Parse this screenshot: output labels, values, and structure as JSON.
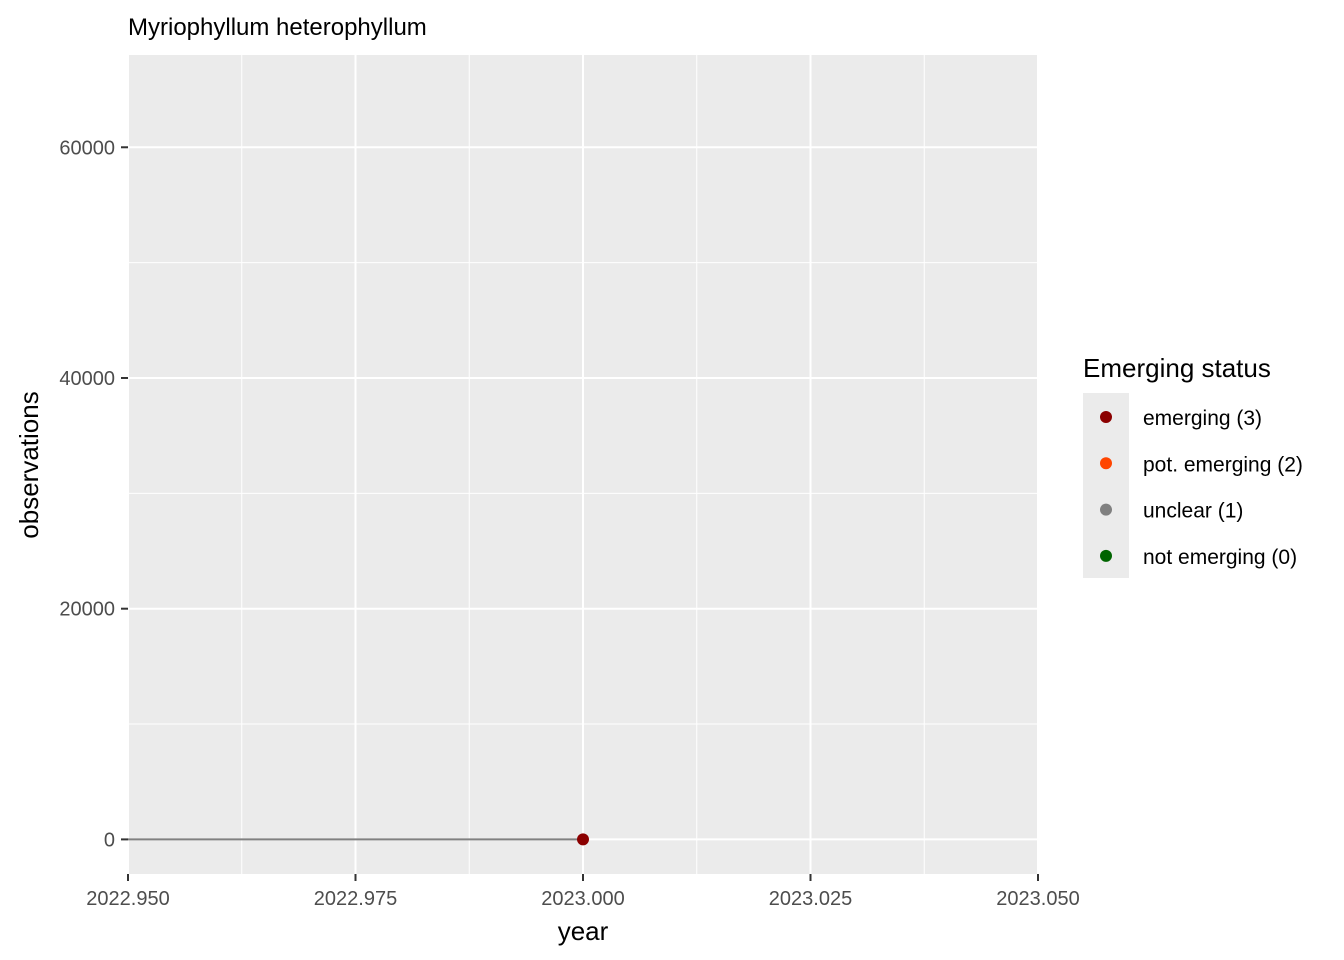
{
  "chart_data": {
    "type": "line",
    "title": "Myriophyllum heterophyllum",
    "xlabel": "year",
    "ylabel": "observations",
    "xlim": [
      2022.95,
      2023.05
    ],
    "ylim": [
      -3000,
      68000
    ],
    "x_ticks": [
      2022.95,
      2022.975,
      2023.0,
      2023.025,
      2023.05
    ],
    "x_tick_labels": [
      "2022.950",
      "2022.975",
      "2023.000",
      "2023.025",
      "2023.050"
    ],
    "y_ticks": [
      0,
      20000,
      40000,
      60000
    ],
    "y_tick_labels": [
      "0",
      "20000",
      "40000",
      "60000"
    ],
    "grid": true,
    "line": {
      "color": "#808080",
      "points": [
        {
          "x": 2022.95,
          "y": 0
        },
        {
          "x": 2023.0,
          "y": 0
        }
      ]
    },
    "points": [
      {
        "x": 2023.0,
        "y": 0,
        "status": "emerging (3)",
        "color": "#8B0000"
      }
    ],
    "legend": {
      "title": "Emerging status",
      "placement": "right",
      "entries": [
        {
          "label": "emerging (3)",
          "color": "#8B0000"
        },
        {
          "label": "pot. emerging (2)",
          "color": "#FF4500"
        },
        {
          "label": "unclear (1)",
          "color": "#808080"
        },
        {
          "label": "not emerging (0)",
          "color": "#006400"
        }
      ]
    }
  }
}
